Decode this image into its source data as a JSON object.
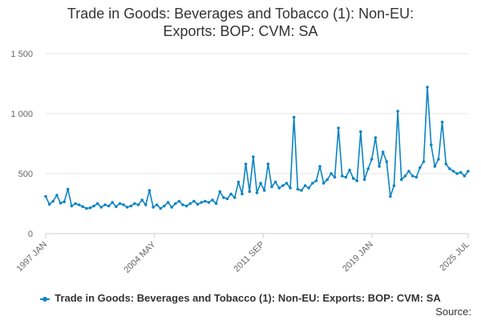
{
  "title_line1": "Trade in Goods: Beverages and Tobacco (1): Non-EU:",
  "title_line2": "Exports: BOP: CVM: SA",
  "legend_label": "Trade in Goods: Beverages and Tobacco (1): Non-EU: Exports: BOP: CVM: SA",
  "source_label": "Source:",
  "colors": {
    "series": "#0c84c4",
    "grid": "#e6e6e6",
    "axis": "#cccccc"
  },
  "chart_data": {
    "type": "line",
    "ylim": [
      0,
      1500
    ],
    "yticks": [
      {
        "value": 0,
        "label": "0"
      },
      {
        "value": 500,
        "label": "500"
      },
      {
        "value": 1000,
        "label": "1 000"
      },
      {
        "value": 1500,
        "label": "1 500"
      }
    ],
    "xlim": [
      "1997-01",
      "2025-07"
    ],
    "xticks": [
      {
        "value": "1997-01",
        "label": "1997 JAN"
      },
      {
        "value": "2004-05",
        "label": "2004 MAY"
      },
      {
        "value": "2011-09",
        "label": "2011 SEP"
      },
      {
        "value": "2019-01",
        "label": "2019 JAN"
      },
      {
        "value": "2025-07",
        "label": "2025 JUL"
      }
    ],
    "grid": true,
    "legend": "bottom",
    "series": [
      {
        "name": "Trade in Goods: Beverages and Tobacco (1): Non-EU: Exports: BOP: CVM: SA",
        "points": [
          [
            "1997-01",
            310
          ],
          [
            "1997-04",
            245
          ],
          [
            "1997-07",
            270
          ],
          [
            "1997-10",
            320
          ],
          [
            "1998-01",
            255
          ],
          [
            "1998-04",
            265
          ],
          [
            "1998-07",
            370
          ],
          [
            "1998-10",
            230
          ],
          [
            "1999-01",
            250
          ],
          [
            "1999-04",
            240
          ],
          [
            "1999-07",
            225
          ],
          [
            "1999-10",
            210
          ],
          [
            "2000-01",
            215
          ],
          [
            "2000-04",
            230
          ],
          [
            "2000-07",
            250
          ],
          [
            "2000-10",
            220
          ],
          [
            "2001-01",
            240
          ],
          [
            "2001-04",
            230
          ],
          [
            "2001-07",
            260
          ],
          [
            "2001-10",
            225
          ],
          [
            "2002-01",
            250
          ],
          [
            "2002-04",
            240
          ],
          [
            "2002-07",
            220
          ],
          [
            "2002-10",
            230
          ],
          [
            "2003-01",
            250
          ],
          [
            "2003-04",
            240
          ],
          [
            "2003-07",
            280
          ],
          [
            "2003-10",
            240
          ],
          [
            "2004-01",
            360
          ],
          [
            "2004-04",
            220
          ],
          [
            "2004-07",
            240
          ],
          [
            "2004-10",
            210
          ],
          [
            "2005-01",
            230
          ],
          [
            "2005-04",
            260
          ],
          [
            "2005-07",
            220
          ],
          [
            "2005-10",
            250
          ],
          [
            "2006-01",
            270
          ],
          [
            "2006-04",
            240
          ],
          [
            "2006-07",
            230
          ],
          [
            "2006-10",
            250
          ],
          [
            "2007-01",
            270
          ],
          [
            "2007-04",
            245
          ],
          [
            "2007-07",
            260
          ],
          [
            "2007-10",
            270
          ],
          [
            "2008-01",
            260
          ],
          [
            "2008-04",
            280
          ],
          [
            "2008-07",
            250
          ],
          [
            "2008-10",
            350
          ],
          [
            "2009-01",
            300
          ],
          [
            "2009-04",
            290
          ],
          [
            "2009-07",
            330
          ],
          [
            "2009-10",
            300
          ],
          [
            "2010-01",
            430
          ],
          [
            "2010-04",
            330
          ],
          [
            "2010-07",
            580
          ],
          [
            "2010-10",
            350
          ],
          [
            "2011-01",
            640
          ],
          [
            "2011-04",
            340
          ],
          [
            "2011-07",
            420
          ],
          [
            "2011-10",
            360
          ],
          [
            "2012-01",
            580
          ],
          [
            "2012-04",
            390
          ],
          [
            "2012-07",
            430
          ],
          [
            "2012-10",
            380
          ],
          [
            "2013-01",
            400
          ],
          [
            "2013-04",
            420
          ],
          [
            "2013-07",
            380
          ],
          [
            "2013-10",
            970
          ],
          [
            "2014-01",
            370
          ],
          [
            "2014-04",
            360
          ],
          [
            "2014-07",
            400
          ],
          [
            "2014-10",
            380
          ],
          [
            "2015-01",
            420
          ],
          [
            "2015-04",
            440
          ],
          [
            "2015-07",
            560
          ],
          [
            "2015-10",
            420
          ],
          [
            "2016-01",
            450
          ],
          [
            "2016-04",
            500
          ],
          [
            "2016-07",
            470
          ],
          [
            "2016-10",
            880
          ],
          [
            "2017-01",
            480
          ],
          [
            "2017-04",
            470
          ],
          [
            "2017-07",
            530
          ],
          [
            "2017-10",
            460
          ],
          [
            "2018-01",
            440
          ],
          [
            "2018-04",
            850
          ],
          [
            "2018-07",
            450
          ],
          [
            "2018-10",
            540
          ],
          [
            "2019-01",
            620
          ],
          [
            "2019-04",
            800
          ],
          [
            "2019-07",
            560
          ],
          [
            "2019-10",
            680
          ],
          [
            "2020-01",
            600
          ],
          [
            "2020-04",
            310
          ],
          [
            "2020-07",
            400
          ],
          [
            "2020-10",
            1020
          ],
          [
            "2021-01",
            450
          ],
          [
            "2021-04",
            480
          ],
          [
            "2021-07",
            520
          ],
          [
            "2021-10",
            480
          ],
          [
            "2022-01",
            470
          ],
          [
            "2022-04",
            550
          ],
          [
            "2022-07",
            600
          ],
          [
            "2022-10",
            1220
          ],
          [
            "2023-01",
            740
          ],
          [
            "2023-04",
            560
          ],
          [
            "2023-07",
            620
          ],
          [
            "2023-10",
            930
          ],
          [
            "2024-01",
            580
          ],
          [
            "2024-04",
            540
          ],
          [
            "2024-07",
            520
          ],
          [
            "2024-10",
            500
          ],
          [
            "2025-01",
            510
          ],
          [
            "2025-04",
            480
          ],
          [
            "2025-07",
            520
          ]
        ]
      }
    ]
  }
}
